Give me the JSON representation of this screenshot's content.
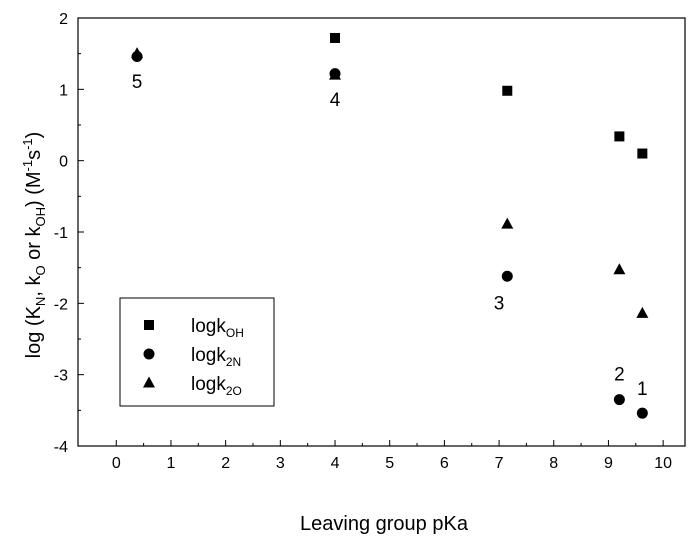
{
  "chart_data": {
    "type": "scatter",
    "xlabel": "Leaving group pKa",
    "ylabel": {
      "parts": [
        {
          "t": "log (K",
          "s": "normal"
        },
        {
          "t": "N",
          "s": "sub"
        },
        {
          "t": ", k",
          "s": "normal"
        },
        {
          "t": "O",
          "s": "sub"
        },
        {
          "t": " or k",
          "s": "normal"
        },
        {
          "t": "OH",
          "s": "sub"
        },
        {
          "t": ") (M",
          "s": "normal"
        },
        {
          "t": "-1",
          "s": "sup"
        },
        {
          "t": "s",
          "s": "normal"
        },
        {
          "t": "-1",
          "s": "sup"
        },
        {
          "t": ")",
          "s": "normal"
        }
      ]
    },
    "xlim": [
      -0.7,
      10.4
    ],
    "ylim": [
      -4,
      2
    ],
    "xticks": [
      0,
      1,
      2,
      3,
      4,
      5,
      6,
      7,
      8,
      9,
      10
    ],
    "yticks": [
      -4,
      -3,
      -2,
      -1,
      0,
      1,
      2
    ],
    "grid": false,
    "legend_placement": "lower-left",
    "series": [
      {
        "name": {
          "base": "logk",
          "sub": "OH"
        },
        "marker": "square",
        "points": [
          [
            4.0,
            1.72
          ],
          [
            7.15,
            0.98
          ],
          [
            9.2,
            0.34
          ],
          [
            9.62,
            0.1
          ]
        ]
      },
      {
        "name": {
          "base": "logk",
          "sub": "2N"
        },
        "marker": "circle",
        "points": [
          [
            0.38,
            1.46
          ],
          [
            4.0,
            1.22
          ],
          [
            7.15,
            -1.62
          ],
          [
            9.2,
            -3.35
          ],
          [
            9.62,
            -3.54
          ]
        ]
      },
      {
        "name": {
          "base": "logk",
          "sub": "2O"
        },
        "marker": "triangle",
        "points": [
          [
            0.38,
            1.5
          ],
          [
            4.0,
            1.2
          ],
          [
            7.15,
            -0.89
          ],
          [
            9.2,
            -1.53
          ],
          [
            9.62,
            -2.14
          ]
        ]
      }
    ],
    "annotations": [
      {
        "text": "5",
        "x": 0.38,
        "y": 1.1
      },
      {
        "text": "4",
        "x": 4.0,
        "y": 0.85
      },
      {
        "text": "3",
        "x": 7.0,
        "y": -2.0
      },
      {
        "text": "2",
        "x": 9.2,
        "y": -3.0
      },
      {
        "text": "1",
        "x": 9.62,
        "y": -3.2
      }
    ]
  }
}
